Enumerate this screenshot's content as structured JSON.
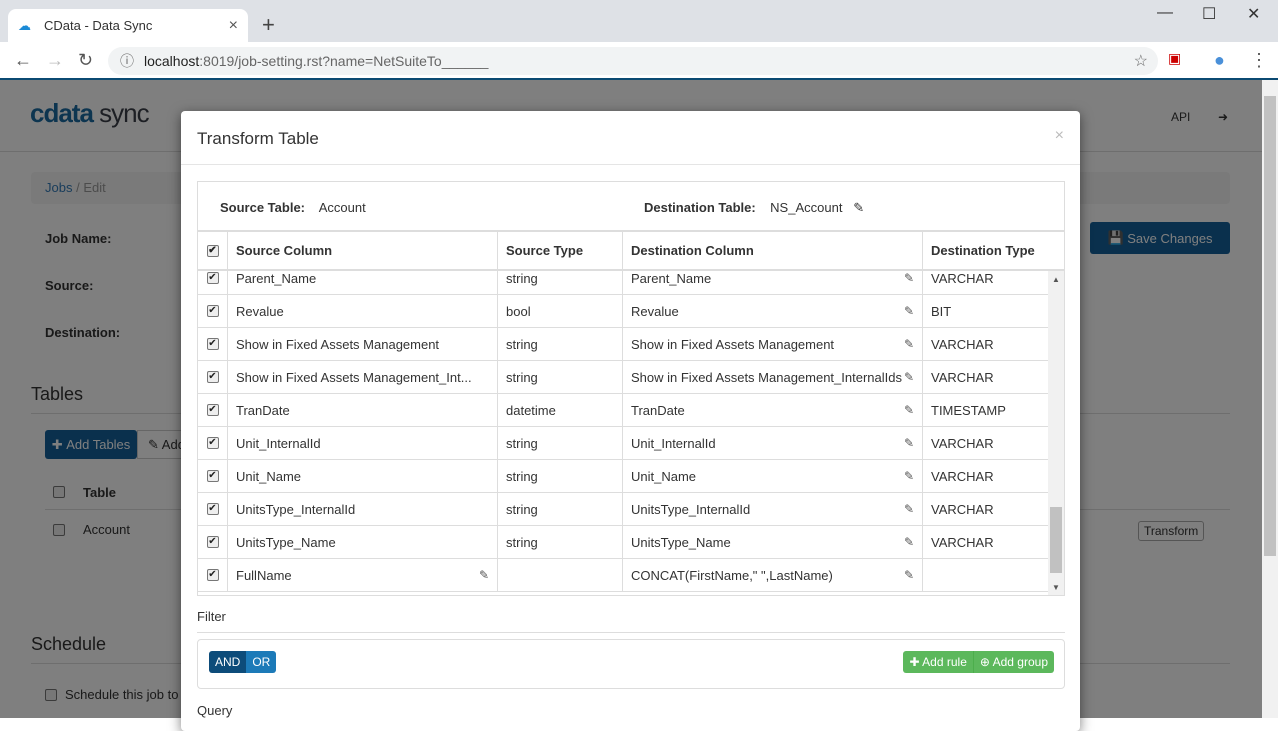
{
  "browser": {
    "tab_title": "CData - Data Sync",
    "url_host": "localhost",
    "url_rest": ":8019/job-setting.rst?name=NetSuiteTo______"
  },
  "app": {
    "logo": "cdata",
    "logo_sub": "sync",
    "api_link": "API",
    "breadcrumb": [
      "Jobs",
      "Edit"
    ],
    "labels": {
      "job_name": "Job Name:",
      "source": "Source:",
      "destination": "Destination:"
    },
    "save_changes": "Save Changes",
    "tables_heading": "Tables",
    "add_tables": "Add Tables",
    "add_custom": "Add",
    "table_header": "Table",
    "table_rows": [
      "Account"
    ],
    "transform_button": "Transform",
    "schedule_heading": "Schedule",
    "schedule_checkbox": "Schedule this job to"
  },
  "modal": {
    "title": "Transform Table",
    "close": "×",
    "source_table_label": "Source Table:",
    "source_table": "Account",
    "destination_table_label": "Destination Table:",
    "destination_table": "NS_Account",
    "columns": [
      "Source Column",
      "Source Type",
      "Destination Column",
      "Destination Type"
    ],
    "rows": [
      {
        "src": "Parent_Name",
        "type": "string",
        "dest": "Parent_Name",
        "dtype": "VARCHAR",
        "checked": true
      },
      {
        "src": "Revalue",
        "type": "bool",
        "dest": "Revalue",
        "dtype": "BIT",
        "checked": true
      },
      {
        "src": "Show in Fixed Assets Management",
        "type": "string",
        "dest": "Show in Fixed Assets Management",
        "dtype": "VARCHAR",
        "checked": true
      },
      {
        "src": "Show in Fixed Assets Management_Int...",
        "type": "string",
        "dest": "Show in Fixed Assets Management_InternalIds",
        "dtype": "VARCHAR",
        "checked": true
      },
      {
        "src": "TranDate",
        "type": "datetime",
        "dest": "TranDate",
        "dtype": "TIMESTAMP",
        "checked": true
      },
      {
        "src": "Unit_InternalId",
        "type": "string",
        "dest": "Unit_InternalId",
        "dtype": "VARCHAR",
        "checked": true
      },
      {
        "src": "Unit_Name",
        "type": "string",
        "dest": "Unit_Name",
        "dtype": "VARCHAR",
        "checked": true
      },
      {
        "src": "UnitsType_InternalId",
        "type": "string",
        "dest": "UnitsType_InternalId",
        "dtype": "VARCHAR",
        "checked": true
      },
      {
        "src": "UnitsType_Name",
        "type": "string",
        "dest": "UnitsType_Name",
        "dtype": "VARCHAR",
        "checked": true
      },
      {
        "src": "FullName",
        "type": "",
        "dest": "CONCAT(FirstName,\" \",LastName)",
        "dtype": "",
        "checked": true,
        "src_editable": true
      }
    ],
    "filter_label": "Filter",
    "and": "AND",
    "or": "OR",
    "add_rule": "Add rule",
    "add_group": "Add group",
    "query_label": "Query"
  },
  "colors": {
    "primary": "#14619a",
    "success": "#5cb85c"
  }
}
